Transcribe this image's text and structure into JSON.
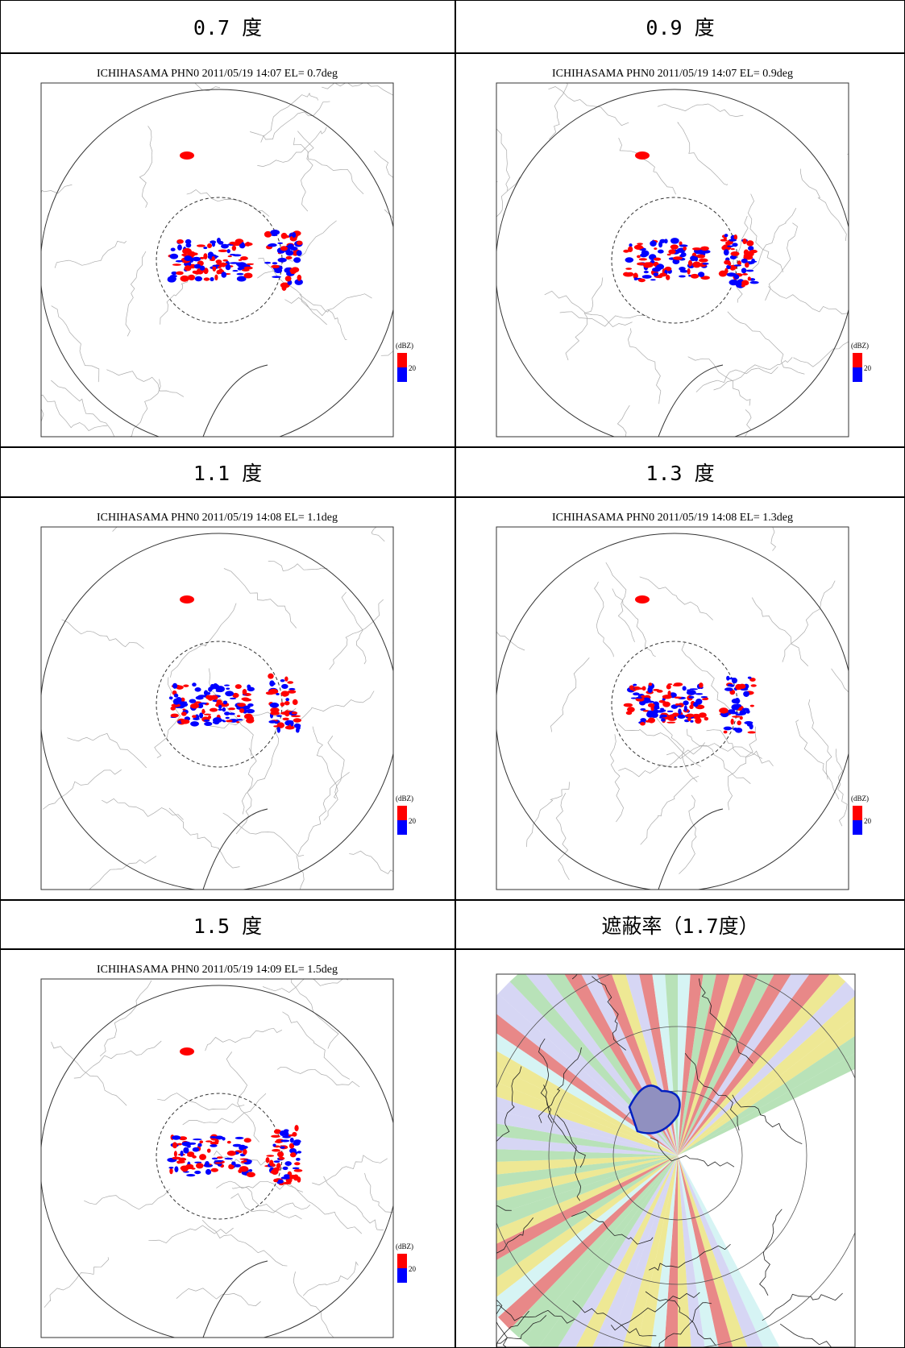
{
  "panels": [
    {
      "header": "0.7 度",
      "title": "ICHIHASAMA  PHN0  2011/05/19 14:07  EL= 0.7deg",
      "legend_unit": "(dBZ)",
      "legend_tick": "20"
    },
    {
      "header": "0.9 度",
      "title": "ICHIHASAMA  PHN0  2011/05/19 14:07  EL= 0.9deg",
      "legend_unit": "(dBZ)",
      "legend_tick": "20"
    },
    {
      "header": "1.1 度",
      "title": "ICHIHASAMA  PHN0  2011/05/19 14:08  EL= 1.1deg",
      "legend_unit": "(dBZ)",
      "legend_tick": "20"
    },
    {
      "header": "1.3 度",
      "title": "ICHIHASAMA  PHN0  2011/05/19 14:08  EL= 1.3deg",
      "legend_unit": "(dBZ)",
      "legend_tick": "20"
    },
    {
      "header": "1.5 度",
      "title": "ICHIHASAMA  PHN0  2011/05/19 14:09  EL= 1.5deg",
      "legend_unit": "(dBZ)",
      "legend_tick": "20"
    },
    {
      "header": "遮蔽率（1.7度）"
    }
  ]
}
